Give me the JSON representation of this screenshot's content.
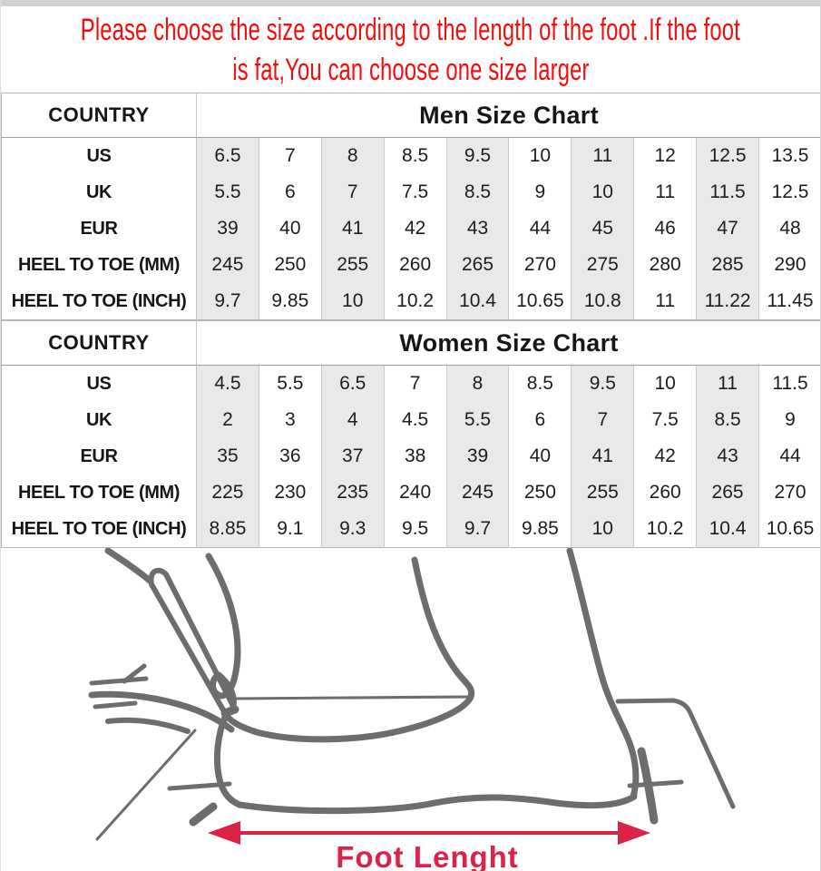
{
  "notice": {
    "line1": "Please choose the size according to the length of the foot .If the foot",
    "line2": "is fat,You can choose one size larger"
  },
  "tables": [
    {
      "country_label": "COUNTRY",
      "title": "Men Size Chart",
      "rows": [
        {
          "label": "US",
          "values": [
            "6.5",
            "7",
            "8",
            "8.5",
            "9.5",
            "10",
            "11",
            "12",
            "12.5",
            "13.5"
          ]
        },
        {
          "label": "UK",
          "values": [
            "5.5",
            "6",
            "7",
            "7.5",
            "8.5",
            "9",
            "10",
            "11",
            "11.5",
            "12.5"
          ]
        },
        {
          "label": "EUR",
          "values": [
            "39",
            "40",
            "41",
            "42",
            "43",
            "44",
            "45",
            "46",
            "47",
            "48"
          ]
        },
        {
          "label": "HEEL TO TOE (MM)",
          "values": [
            "245",
            "250",
            "255",
            "260",
            "265",
            "270",
            "275",
            "280",
            "285",
            "290"
          ]
        },
        {
          "label": "HEEL TO TOE (INCH)",
          "values": [
            "9.7",
            "9.85",
            "10",
            "10.2",
            "10.4",
            "10.65",
            "10.8",
            "11",
            "11.22",
            "11.45"
          ]
        }
      ]
    },
    {
      "country_label": "COUNTRY",
      "title": "Women Size Chart",
      "rows": [
        {
          "label": "US",
          "values": [
            "4.5",
            "5.5",
            "6.5",
            "7",
            "8",
            "8.5",
            "9.5",
            "10",
            "11",
            "11.5"
          ]
        },
        {
          "label": "UK",
          "values": [
            "2",
            "3",
            "4",
            "4.5",
            "5.5",
            "6",
            "7",
            "7.5",
            "8.5",
            "9"
          ]
        },
        {
          "label": "EUR",
          "values": [
            "35",
            "36",
            "37",
            "38",
            "39",
            "40",
            "41",
            "42",
            "43",
            "44"
          ]
        },
        {
          "label": "HEEL TO TOE (MM)",
          "values": [
            "225",
            "230",
            "235",
            "240",
            "245",
            "250",
            "255",
            "260",
            "265",
            "270"
          ]
        },
        {
          "label": "HEEL TO TOE (INCH)",
          "values": [
            "8.85",
            "9.1",
            "9.3",
            "9.5",
            "9.7",
            "9.85",
            "10",
            "10.2",
            "10.4",
            "10.65"
          ]
        }
      ]
    }
  ],
  "diagram": {
    "arrow_label": "Foot Lenght"
  },
  "colors": {
    "notice_red": "#f70c0c",
    "stripe_gray": "#e9e9e9",
    "grid_border": "#c9c9c9",
    "header_rule": "#9e9e9e",
    "arrow_red": "#dd2247",
    "sketch_gray": "#6d6d6d",
    "text_black": "#1d1d1d"
  }
}
